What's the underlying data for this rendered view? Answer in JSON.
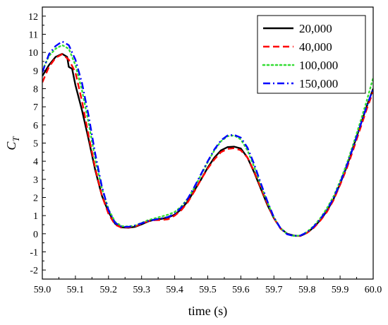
{
  "chart_data": {
    "type": "line",
    "xlabel": "time (s)",
    "ylabel_main": "C",
    "ylabel_sub": "T",
    "xlim": [
      59.0,
      60.0
    ],
    "ylim": [
      -2.5,
      12.5
    ],
    "xticks": [
      59.0,
      59.1,
      59.2,
      59.3,
      59.4,
      59.5,
      59.6,
      59.7,
      59.8,
      59.9,
      60.0
    ],
    "xtick_labels": [
      "59.0",
      "59.1",
      "59.2",
      "59.3",
      "59.4",
      "59.5",
      "59.6",
      "59.7",
      "59.8",
      "59.9",
      "60.0"
    ],
    "yticks": [
      -2,
      -1,
      0,
      1,
      2,
      3,
      4,
      5,
      6,
      7,
      8,
      9,
      10,
      11,
      12
    ],
    "ytick_labels": [
      "-2",
      "-1",
      "0",
      "1",
      "2",
      "3",
      "4",
      "5",
      "6",
      "7",
      "8",
      "9",
      "10",
      "11",
      "12"
    ],
    "grid": false,
    "legend_position": "top-right",
    "series": [
      {
        "name": "20,000",
        "color": "#000000",
        "dash": "solid",
        "x": [
          59.0,
          59.02,
          59.04,
          59.06,
          59.075,
          59.08,
          59.09,
          59.1,
          59.12,
          59.14,
          59.16,
          59.18,
          59.2,
          59.22,
          59.24,
          59.26,
          59.28,
          59.3,
          59.32,
          59.34,
          59.36,
          59.38,
          59.4,
          59.42,
          59.44,
          59.46,
          59.48,
          59.5,
          59.52,
          59.54,
          59.56,
          59.58,
          59.6,
          59.62,
          59.64,
          59.66,
          59.68,
          59.7,
          59.72,
          59.74,
          59.76,
          59.78,
          59.8,
          59.82,
          59.84,
          59.86,
          59.88,
          59.9,
          59.92,
          59.94,
          59.96,
          59.98,
          60.0
        ],
        "y": [
          8.7,
          9.3,
          9.75,
          9.92,
          9.75,
          9.2,
          9.1,
          8.2,
          6.8,
          5.2,
          3.5,
          2.1,
          1.2,
          0.55,
          0.35,
          0.33,
          0.38,
          0.52,
          0.68,
          0.78,
          0.82,
          0.9,
          1.05,
          1.35,
          1.8,
          2.4,
          3.0,
          3.65,
          4.2,
          4.6,
          4.78,
          4.8,
          4.7,
          4.2,
          3.4,
          2.5,
          1.6,
          0.85,
          0.3,
          0.0,
          -0.1,
          -0.12,
          0.05,
          0.35,
          0.75,
          1.25,
          1.9,
          2.75,
          3.7,
          4.8,
          5.9,
          7.0,
          8.0
        ]
      },
      {
        "name": "40,000",
        "color": "#ff0000",
        "dash": "dashed",
        "x": [
          59.0,
          59.02,
          59.04,
          59.06,
          59.08,
          59.1,
          59.12,
          59.14,
          59.16,
          59.18,
          59.2,
          59.22,
          59.24,
          59.26,
          59.28,
          59.3,
          59.32,
          59.34,
          59.36,
          59.38,
          59.4,
          59.42,
          59.44,
          59.46,
          59.48,
          59.5,
          59.52,
          59.54,
          59.56,
          59.58,
          59.6,
          59.62,
          59.64,
          59.66,
          59.68,
          59.7,
          59.72,
          59.74,
          59.76,
          59.78,
          59.8,
          59.82,
          59.84,
          59.86,
          59.88,
          59.9,
          59.92,
          59.94,
          59.96,
          59.98,
          60.0
        ],
        "y": [
          8.35,
          9.2,
          9.7,
          9.9,
          9.6,
          8.9,
          7.3,
          5.4,
          3.6,
          2.1,
          1.1,
          0.5,
          0.33,
          0.35,
          0.4,
          0.55,
          0.7,
          0.75,
          0.76,
          0.8,
          1.0,
          1.3,
          1.75,
          2.35,
          3.0,
          3.6,
          4.1,
          4.5,
          4.68,
          4.72,
          4.6,
          4.2,
          3.45,
          2.55,
          1.65,
          0.85,
          0.28,
          -0.02,
          -0.12,
          -0.12,
          0.05,
          0.32,
          0.72,
          1.2,
          1.85,
          2.7,
          3.6,
          4.65,
          5.75,
          6.85,
          7.85
        ]
      },
      {
        "name": "100,000",
        "color": "#33dd33",
        "dash": "dotted",
        "x": [
          59.0,
          59.02,
          59.04,
          59.06,
          59.08,
          59.1,
          59.12,
          59.14,
          59.16,
          59.18,
          59.2,
          59.22,
          59.24,
          59.26,
          59.28,
          59.3,
          59.32,
          59.34,
          59.36,
          59.38,
          59.4,
          59.42,
          59.44,
          59.46,
          59.48,
          59.5,
          59.52,
          59.54,
          59.56,
          59.58,
          59.6,
          59.62,
          59.64,
          59.66,
          59.68,
          59.7,
          59.72,
          59.74,
          59.76,
          59.78,
          59.8,
          59.82,
          59.84,
          59.86,
          59.88,
          59.9,
          59.92,
          59.94,
          59.96,
          59.98,
          60.0
        ],
        "y": [
          9.0,
          9.8,
          10.2,
          10.4,
          10.2,
          9.3,
          7.9,
          6.1,
          4.1,
          2.5,
          1.35,
          0.65,
          0.42,
          0.4,
          0.45,
          0.6,
          0.75,
          0.85,
          0.95,
          1.05,
          1.2,
          1.5,
          1.95,
          2.55,
          3.25,
          3.95,
          4.6,
          5.1,
          5.38,
          5.42,
          5.2,
          4.6,
          3.7,
          2.7,
          1.75,
          0.9,
          0.3,
          -0.02,
          -0.12,
          -0.1,
          0.1,
          0.42,
          0.85,
          1.4,
          2.05,
          2.9,
          3.85,
          4.95,
          6.1,
          7.3,
          8.6
        ]
      },
      {
        "name": "150,000",
        "color": "#0000ff",
        "dash": "dashdot",
        "x": [
          59.0,
          59.02,
          59.04,
          59.06,
          59.08,
          59.1,
          59.12,
          59.14,
          59.16,
          59.18,
          59.2,
          59.22,
          59.24,
          59.26,
          59.28,
          59.3,
          59.32,
          59.34,
          59.36,
          59.38,
          59.4,
          59.42,
          59.44,
          59.46,
          59.48,
          59.5,
          59.52,
          59.54,
          59.56,
          59.58,
          59.6,
          59.62,
          59.64,
          59.66,
          59.68,
          59.7,
          59.72,
          59.74,
          59.76,
          59.78,
          59.8,
          59.82,
          59.84,
          59.86,
          59.88,
          59.9,
          59.92,
          59.94,
          59.96,
          59.98,
          60.0
        ],
        "y": [
          8.9,
          9.9,
          10.35,
          10.6,
          10.4,
          9.6,
          8.3,
          6.5,
          4.4,
          2.6,
          1.3,
          0.6,
          0.38,
          0.38,
          0.45,
          0.58,
          0.7,
          0.78,
          0.85,
          0.92,
          1.1,
          1.45,
          1.95,
          2.6,
          3.3,
          4.0,
          4.65,
          5.15,
          5.42,
          5.45,
          5.3,
          4.75,
          3.85,
          2.8,
          1.8,
          0.9,
          0.3,
          -0.03,
          -0.12,
          -0.1,
          0.08,
          0.38,
          0.8,
          1.3,
          1.95,
          2.8,
          3.75,
          4.8,
          5.9,
          7.0,
          8.0
        ]
      }
    ]
  }
}
